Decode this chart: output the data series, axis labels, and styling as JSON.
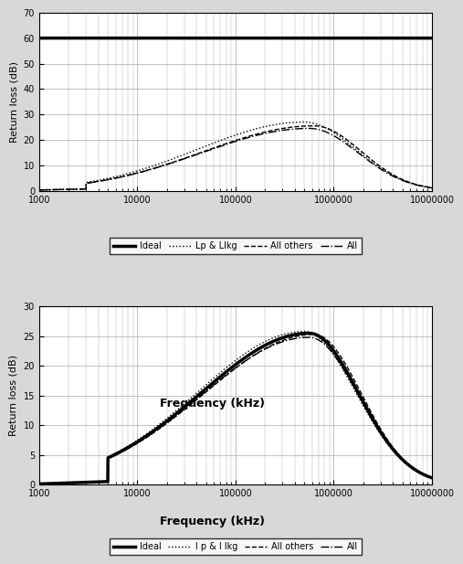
{
  "bg_color": "#d8d8d8",
  "plot_bg_color": "#ffffff",
  "grid_color": "#aaaaaa",
  "top": {
    "ylim": [
      0,
      70
    ],
    "yticks": [
      0,
      10,
      20,
      30,
      40,
      50,
      60,
      70
    ],
    "ylabel": "Return loss (dB)",
    "xlim": [
      1000,
      10000000
    ],
    "xlabel": "Frequency (kHz)",
    "legend": [
      "Ideal",
      "Lp & Llkg",
      "All others",
      "All"
    ]
  },
  "bottom": {
    "ylim": [
      0,
      30
    ],
    "yticks": [
      0,
      5,
      10,
      15,
      20,
      25,
      30
    ],
    "ylabel": "Return loss (dB)",
    "xlim": [
      1000,
      10000000
    ],
    "xlabel": "Frequency (kHz)",
    "legend": [
      "Ideal",
      "l p & l lkg",
      "All others",
      "All"
    ]
  }
}
